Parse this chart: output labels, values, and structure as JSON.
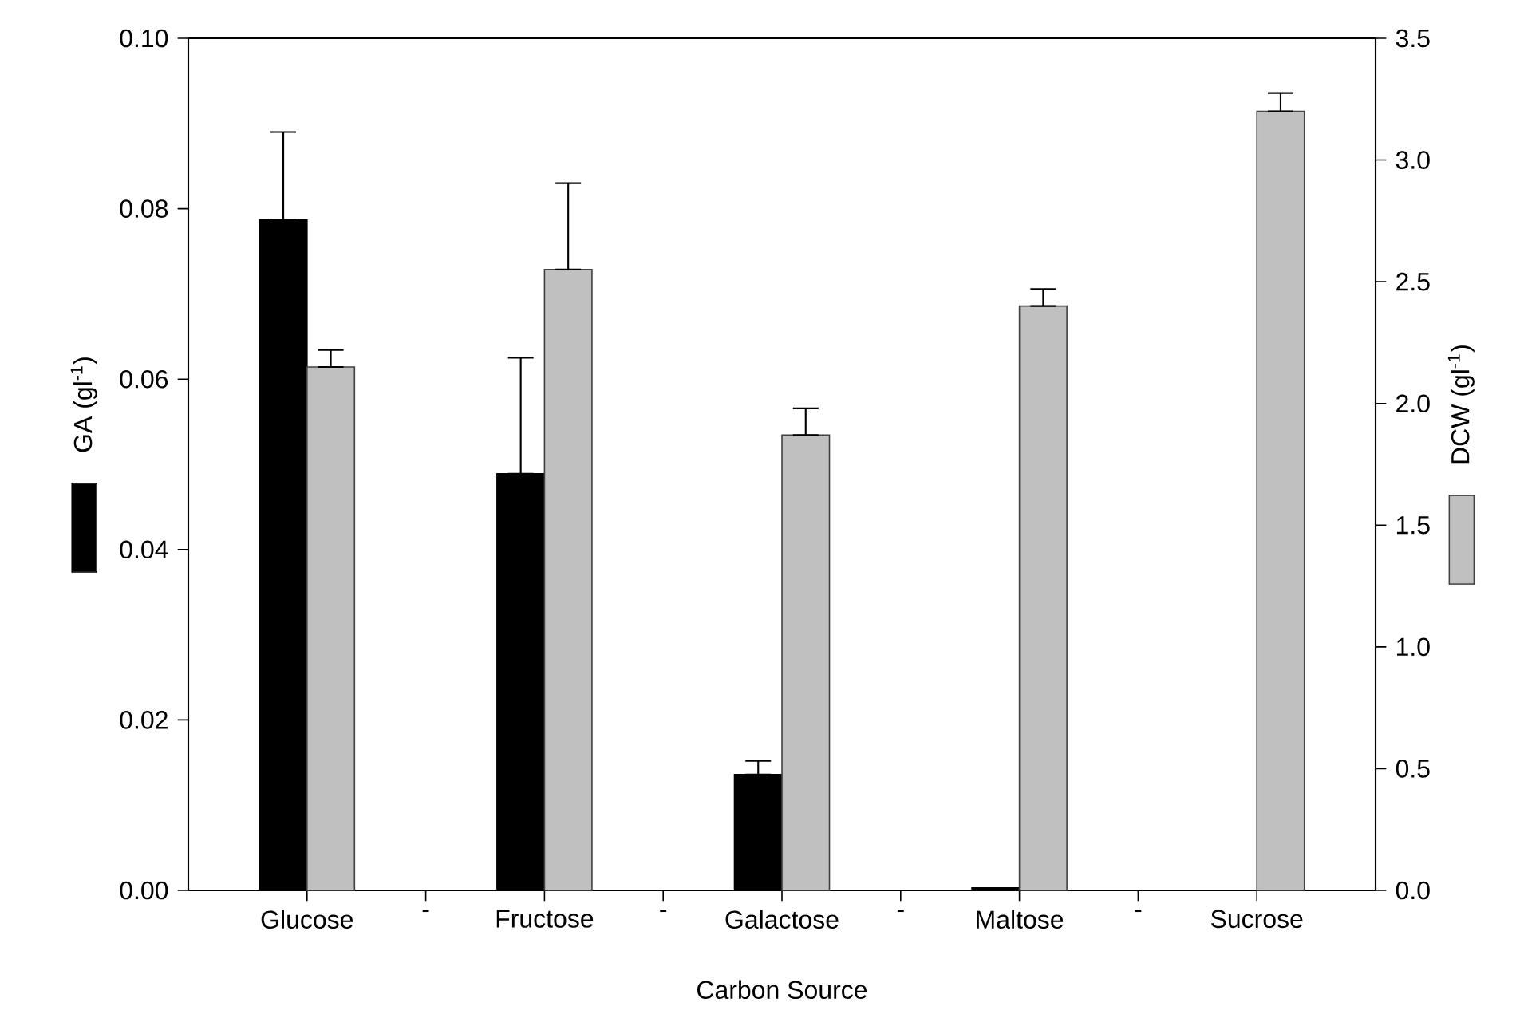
{
  "chart_data": {
    "type": "bar",
    "xlabel": "Carbon Source",
    "ylabel": "GA (gl$^{-1}$)",
    "y2label": "DCW (gl$^{-1}$)",
    "categories": [
      "Glucose",
      "-",
      "Fructose",
      "-",
      "Galactose",
      "-",
      "Maltose",
      "-",
      "Sucrose"
    ],
    "series": [
      {
        "color": "#000000",
        "values": [
          0.0787,
          null,
          0.0489,
          null,
          0.0136,
          null,
          0.0003,
          null,
          null
        ],
        "errors": [
          [
            0.0787,
            0.089
          ],
          null,
          [
            0.0489,
            0.0625
          ],
          null,
          [
            0.0136,
            0.0152
          ],
          null,
          null,
          null,
          null
        ]
      },
      {
        "color": "#c0c0c0",
        "axis": "y2",
        "values": [
          2.15,
          null,
          2.55,
          null,
          1.87,
          null,
          2.4,
          null,
          3.2
        ],
        "errors": [
          [
            2.15,
            2.22
          ],
          null,
          [
            2.55,
            2.905
          ],
          null,
          [
            1.87,
            1.98
          ],
          null,
          [
            2.4,
            2.47
          ],
          null,
          [
            3.2,
            3.275
          ]
        ]
      }
    ],
    "ylim": [
      0,
      0.1
    ],
    "yticks": [
      {
        "value": 0,
        "label": "0.00"
      },
      {
        "value": 0.02,
        "label": "0.02"
      },
      {
        "value": 0.04,
        "label": "0.04"
      },
      {
        "value": 0.06,
        "label": "0.06"
      },
      {
        "value": 0.08,
        "label": "0.08"
      },
      {
        "value": 0.1,
        "label": "0.10"
      }
    ],
    "y2lim": [
      0,
      3.5
    ],
    "y2ticks": [
      {
        "value": 0,
        "label": "0.0"
      },
      {
        "value": 0.5,
        "label": "0.5"
      },
      {
        "value": 1,
        "label": "1.0"
      },
      {
        "value": 1.5,
        "label": "1.5"
      },
      {
        "value": 2,
        "label": "2.0"
      },
      {
        "value": 2.5,
        "label": "2.5"
      },
      {
        "value": 3,
        "label": "3.0"
      },
      {
        "value": 3.5,
        "label": "3.5"
      }
    ]
  }
}
